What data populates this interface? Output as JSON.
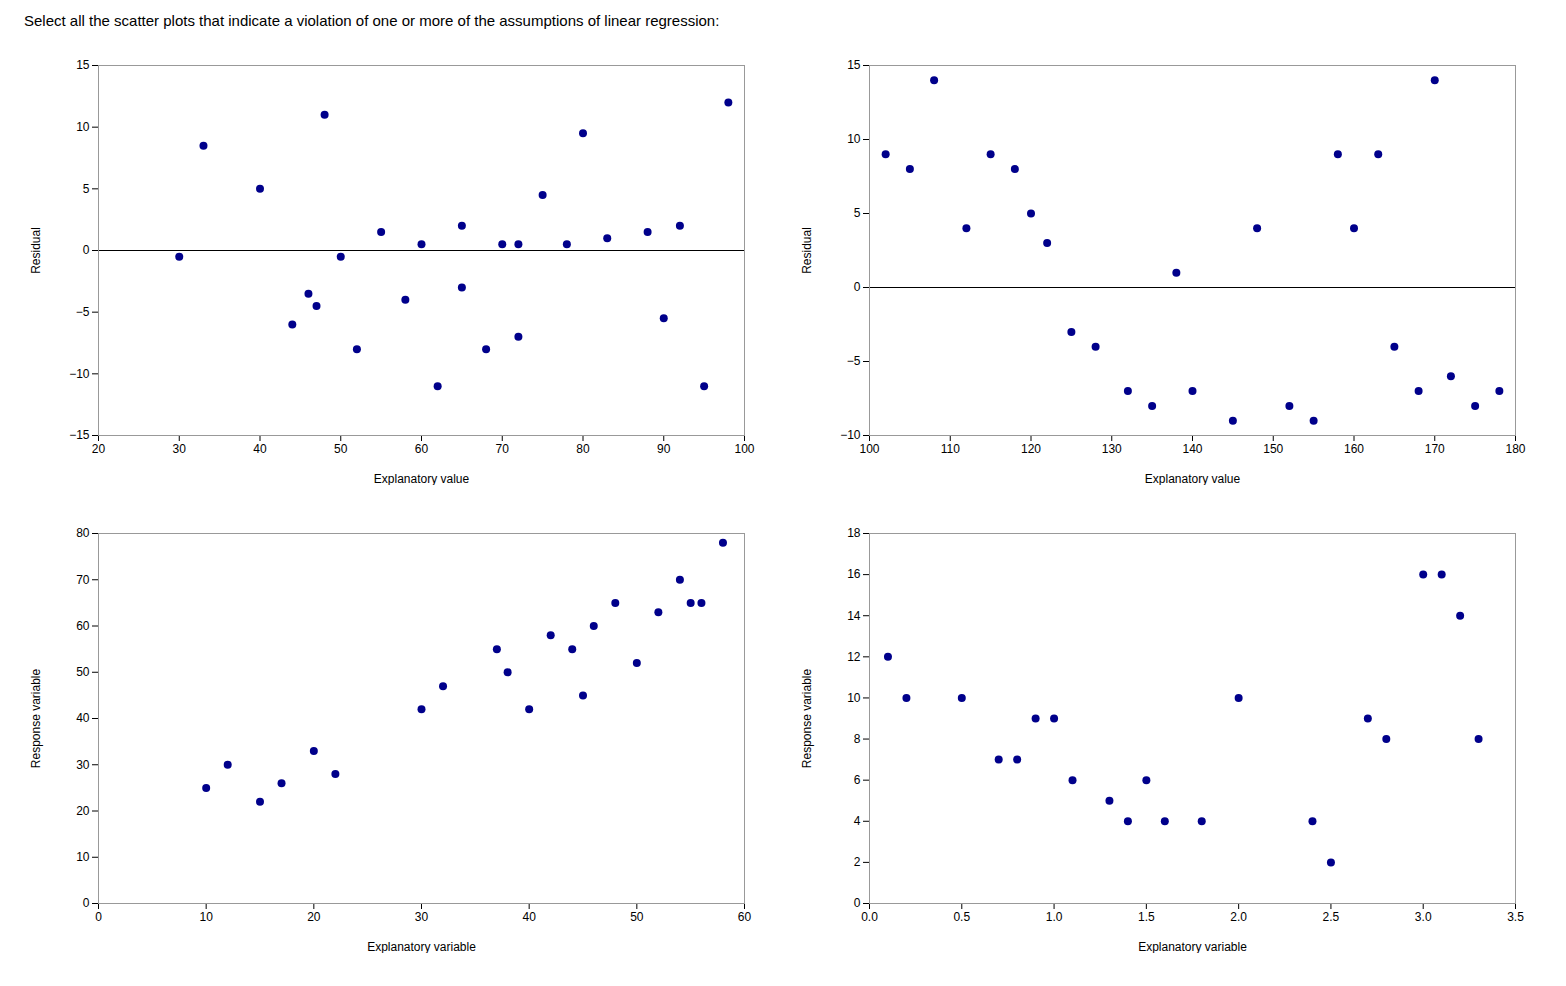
{
  "title": "Select all the scatter plots that indicate a violation of one or more of the assumptions of linear regression:",
  "chart_data": [
    {
      "type": "scatter",
      "xlabel": "Explanatory value",
      "ylabel": "Residual",
      "color": "#00008B",
      "xlim": [
        20,
        100
      ],
      "ylim": [
        -15,
        15
      ],
      "xticks": [
        20,
        30,
        40,
        50,
        60,
        70,
        80,
        90,
        100
      ],
      "yticks": [
        -15,
        -10,
        -5,
        0,
        5,
        10,
        15
      ],
      "x": [
        30,
        33,
        40,
        44,
        46,
        47,
        48,
        50,
        52,
        55,
        58,
        60,
        62,
        65,
        65,
        68,
        70,
        72,
        72,
        75,
        78,
        80,
        83,
        88,
        90,
        92,
        95,
        98
      ],
      "values": [
        -0.5,
        8.5,
        5,
        -6,
        -3.5,
        -4.5,
        11,
        -0.5,
        -8,
        1.5,
        -4,
        0.5,
        -11,
        2,
        -3,
        -8,
        0.5,
        0.5,
        -7,
        4.5,
        0.5,
        9.5,
        1,
        1.5,
        -5.5,
        2,
        -11,
        12
      ],
      "hline": 0
    },
    {
      "type": "scatter",
      "xlabel": "Explanatory value",
      "ylabel": "Residual",
      "color": "#00008B",
      "xlim": [
        100,
        180
      ],
      "ylim": [
        -10,
        15
      ],
      "xticks": [
        100,
        110,
        120,
        130,
        140,
        150,
        160,
        170,
        180
      ],
      "yticks": [
        -10,
        -5,
        0,
        5,
        10,
        15
      ],
      "x": [
        102,
        105,
        108,
        112,
        115,
        118,
        120,
        122,
        125,
        128,
        132,
        135,
        138,
        140,
        145,
        148,
        152,
        155,
        158,
        160,
        163,
        165,
        168,
        170,
        172,
        175,
        178
      ],
      "values": [
        9,
        8,
        14,
        4,
        9,
        8,
        5,
        3,
        -3,
        -4,
        -7,
        -8,
        1,
        -7,
        -9,
        4,
        -8,
        -9,
        9,
        4,
        9,
        -4,
        -7,
        14,
        -6,
        -8,
        -7
      ],
      "hline": 0
    },
    {
      "type": "scatter",
      "xlabel": "Explanatory variable",
      "ylabel": "Response variable",
      "color": "#00008B",
      "xlim": [
        0,
        60
      ],
      "ylim": [
        0,
        80
      ],
      "xticks": [
        0,
        10,
        20,
        30,
        40,
        50,
        60
      ],
      "yticks": [
        0,
        10,
        20,
        30,
        40,
        50,
        60,
        70,
        80
      ],
      "x": [
        10,
        12,
        15,
        17,
        20,
        22,
        30,
        32,
        37,
        38,
        40,
        42,
        44,
        45,
        46,
        48,
        50,
        52,
        54,
        55,
        56,
        58
      ],
      "values": [
        25,
        30,
        22,
        26,
        33,
        28,
        42,
        47,
        55,
        50,
        42,
        58,
        55,
        45,
        60,
        65,
        52,
        63,
        70,
        65,
        65,
        78
      ]
    },
    {
      "type": "scatter",
      "xlabel": "Explanatory variable",
      "ylabel": "Response variable",
      "color": "#00008B",
      "xlim": [
        0,
        3.5
      ],
      "ylim": [
        0,
        18
      ],
      "xticks": [
        {
          "value": 0,
          "label": "0.0"
        },
        {
          "value": 0.5,
          "label": "0.5"
        },
        {
          "value": 1,
          "label": "1.0"
        },
        {
          "value": 1.5,
          "label": "1.5"
        },
        {
          "value": 2,
          "label": "2.0"
        },
        {
          "value": 2.5,
          "label": "2.5"
        },
        {
          "value": 3,
          "label": "3.0"
        },
        {
          "value": 3.5,
          "label": "3.5"
        }
      ],
      "yticks": [
        0,
        2,
        4,
        6,
        8,
        10,
        12,
        14,
        16,
        18
      ],
      "x": [
        0.1,
        0.2,
        0.5,
        0.7,
        0.8,
        0.9,
        1.0,
        1.1,
        1.3,
        1.4,
        1.5,
        1.6,
        1.8,
        2.0,
        2.4,
        2.5,
        2.7,
        2.8,
        3.0,
        3.1,
        3.2,
        3.3
      ],
      "values": [
        12,
        10,
        10,
        7,
        7,
        9,
        9,
        6,
        5,
        4,
        6,
        4,
        4,
        10,
        4,
        2,
        9,
        8,
        16,
        16,
        14,
        8
      ]
    }
  ]
}
